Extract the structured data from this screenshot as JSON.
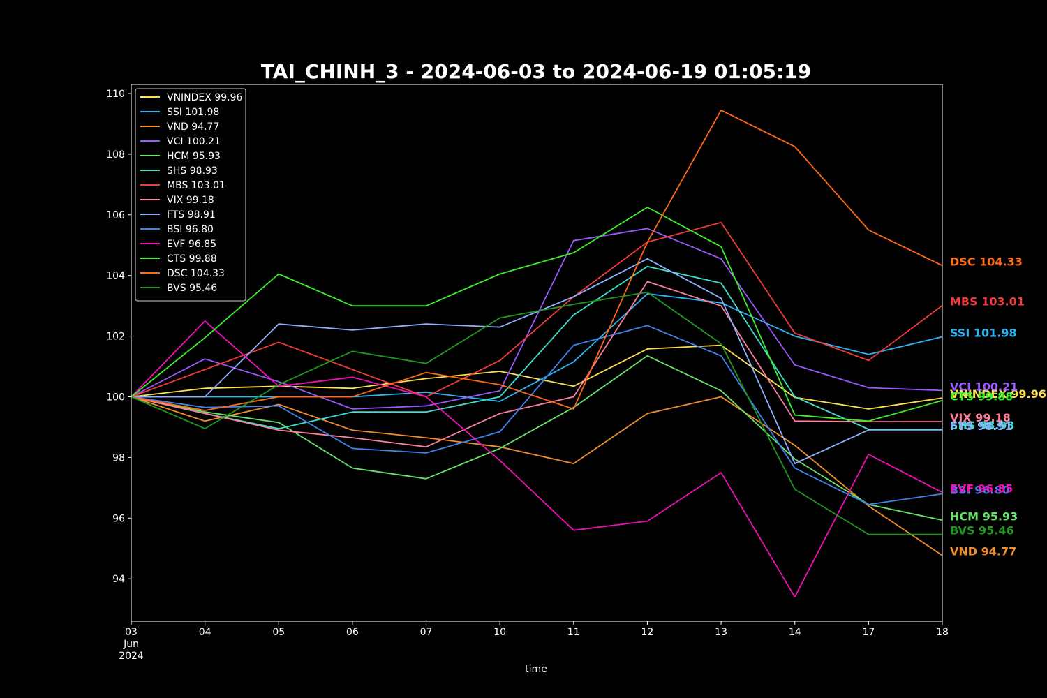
{
  "chart_data": {
    "type": "line",
    "title": "TAI_CHINH_3 - 2024-06-03 to 2024-06-19 01:05:19",
    "xlabel": "time",
    "ylabel": "",
    "x": [
      "2024-06-03",
      "2024-06-04",
      "2024-06-05",
      "2024-06-06",
      "2024-06-07",
      "2024-06-10",
      "2024-06-11",
      "2024-06-12",
      "2024-06-13",
      "2024-06-14",
      "2024-06-17",
      "2024-06-18"
    ],
    "x_tick_labels": [
      "03\nJun\n2024",
      "04",
      "05",
      "06",
      "07",
      "10",
      "11",
      "12",
      "13",
      "14",
      "17",
      "18"
    ],
    "ylim": [
      92.6,
      110.3
    ],
    "y_ticks": [
      94,
      96,
      98,
      100,
      102,
      104,
      106,
      108,
      110
    ],
    "grid": false,
    "legend_position": "upper-left",
    "background": "#000000",
    "series": [
      {
        "name": "VNINDEX 99.96",
        "label": "VNINDEX 99.96",
        "color": "#ffe14d",
        "values": [
          100,
          100.28,
          100.35,
          100.28,
          100.6,
          100.84,
          100.35,
          101.58,
          101.7,
          99.98,
          99.6,
          99.96
        ]
      },
      {
        "name": "SSI 101.98",
        "label": "SSI 101.98",
        "color": "#29b6f6",
        "values": [
          100,
          100,
          100,
          100,
          100.15,
          99.85,
          101.15,
          103.4,
          103.1,
          102,
          101.4,
          101.98
        ]
      },
      {
        "name": "VND 94.77",
        "label": "VND 94.77",
        "color": "#f28e2b",
        "values": [
          100,
          99.2,
          99.75,
          98.9,
          98.65,
          98.35,
          97.8,
          99.45,
          100,
          98.4,
          96.4,
          94.77
        ]
      },
      {
        "name": "VCI 100.21",
        "label": "VCI 100.21",
        "color": "#9b59ff",
        "values": [
          100,
          101.25,
          100.5,
          99.6,
          99.7,
          100.2,
          105.15,
          105.55,
          104.55,
          101.05,
          100.3,
          100.21
        ]
      },
      {
        "name": "HCM 95.93",
        "label": "HCM 95.93",
        "color": "#66e36a",
        "values": [
          100,
          99.5,
          99.15,
          97.65,
          97.3,
          98.3,
          99.65,
          101.35,
          100.2,
          97.95,
          96.45,
          95.93
        ]
      },
      {
        "name": "SHS 98.93",
        "label": "SHS 98.93",
        "color": "#3de0d0",
        "values": [
          100,
          99.45,
          98.95,
          99.5,
          99.5,
          100,
          102.7,
          104.3,
          103.75,
          100,
          98.93,
          98.93
        ]
      },
      {
        "name": "MBS 103.01",
        "label": "MBS 103.01",
        "color": "#f23c3c",
        "values": [
          100,
          100.9,
          101.8,
          100.9,
          100,
          101.2,
          103.3,
          105.1,
          105.75,
          102.1,
          101.2,
          103.01
        ]
      },
      {
        "name": "VIX 99.18",
        "label": "VIX 99.18",
        "color": "#ff7f9c",
        "values": [
          100,
          99.45,
          98.9,
          98.65,
          98.35,
          99.45,
          100,
          103.8,
          103,
          99.2,
          99.18,
          99.18
        ]
      },
      {
        "name": "FTS 98.91",
        "label": "FTS 98.91",
        "color": "#8fb2ff",
        "values": [
          100,
          100,
          102.4,
          102.2,
          102.4,
          102.3,
          103.3,
          104.55,
          103.25,
          97.8,
          98.91,
          98.91
        ]
      },
      {
        "name": "BSI 96.80",
        "label": "BSI 96.80",
        "color": "#3d85f0",
        "values": [
          100,
          99.65,
          99.7,
          98.3,
          98.15,
          98.85,
          101.7,
          102.35,
          101.35,
          97.65,
          96.45,
          96.8
        ]
      },
      {
        "name": "EVF 96.85",
        "label": "EVF 96.85",
        "color": "#f20fb8",
        "values": [
          100,
          102.5,
          100.35,
          100.65,
          100,
          97.9,
          95.6,
          95.9,
          97.5,
          93.4,
          98.1,
          96.85
        ]
      },
      {
        "name": "CTS 99.88",
        "label": "CTS 99.88",
        "color": "#3cf02a",
        "values": [
          100,
          101.95,
          104.05,
          103,
          103,
          104.05,
          104.75,
          106.25,
          104.95,
          99.4,
          99.2,
          99.88
        ]
      },
      {
        "name": "DSC 104.33",
        "label": "DSC 104.33",
        "color": "#ff6a13",
        "values": [
          100,
          99.55,
          100,
          100,
          100.8,
          100.4,
          99.6,
          105.1,
          109.45,
          108.25,
          105.5,
          104.33
        ]
      },
      {
        "name": "BVS 95.46",
        "label": "BVS 95.46",
        "color": "#1f9a1f",
        "values": [
          100,
          98.95,
          100.4,
          101.5,
          101.1,
          102.6,
          103.05,
          103.45,
          101.75,
          96.95,
          95.46,
          95.46
        ]
      }
    ]
  }
}
